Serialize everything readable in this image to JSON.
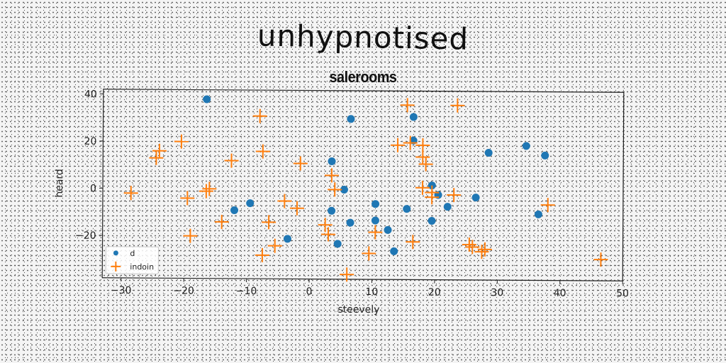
{
  "chart_data": {
    "type": "scatter",
    "title": "unhypnotised",
    "subtitle": "salerooms",
    "xlabel": "steevely",
    "ylabel": "heard",
    "xlim": [
      -33,
      50
    ],
    "ylim": [
      -38,
      42
    ],
    "xticks": [
      -30,
      -20,
      -10,
      0,
      10,
      20,
      30,
      40,
      50
    ],
    "yticks": [
      -20,
      0,
      20,
      40
    ],
    "grid": false,
    "legend_position": "lower-left",
    "series": [
      {
        "name": "d",
        "marker": "circle",
        "color": "#1f77b4",
        "points": [
          [
            -16.5,
            38
          ],
          [
            6.5,
            30
          ],
          [
            16.5,
            31
          ],
          [
            16.5,
            21
          ],
          [
            28.5,
            16
          ],
          [
            34.5,
            19
          ],
          [
            37.5,
            15
          ],
          [
            3.5,
            12
          ],
          [
            5.5,
            0
          ],
          [
            19.5,
            2
          ],
          [
            20.5,
            -2
          ],
          [
            26.5,
            -3
          ],
          [
            -12,
            -9
          ],
          [
            -9.5,
            -6
          ],
          [
            3.5,
            -9
          ],
          [
            10.5,
            -6
          ],
          [
            15.5,
            -8
          ],
          [
            19.5,
            -13
          ],
          [
            22,
            -7
          ],
          [
            36.5,
            -10
          ],
          [
            6.5,
            -14
          ],
          [
            10.5,
            -13
          ],
          [
            12.5,
            -17
          ],
          [
            -3.5,
            -21
          ],
          [
            4.5,
            -23
          ],
          [
            13.5,
            -26
          ]
        ]
      },
      {
        "name": "indoin",
        "marker": "plus",
        "color": "#ff7f0e",
        "points": [
          [
            -8,
            31
          ],
          [
            15.5,
            36
          ],
          [
            23.5,
            36
          ],
          [
            -24.5,
            13
          ],
          [
            -24,
            16
          ],
          [
            -20.5,
            20
          ],
          [
            -7.5,
            16
          ],
          [
            -12.5,
            12
          ],
          [
            -1.5,
            11
          ],
          [
            3.5,
            6
          ],
          [
            14,
            19
          ],
          [
            16,
            20
          ],
          [
            18,
            19
          ],
          [
            18,
            14
          ],
          [
            18.5,
            11
          ],
          [
            -28.5,
            -2
          ],
          [
            -19.5,
            -4
          ],
          [
            -16.5,
            -1
          ],
          [
            -16,
            0
          ],
          [
            4,
            0
          ],
          [
            18,
            1
          ],
          [
            19.5,
            -1
          ],
          [
            19.5,
            -3
          ],
          [
            23,
            -2
          ],
          [
            -4,
            -5
          ],
          [
            -2,
            -8
          ],
          [
            38,
            -6
          ],
          [
            -14,
            -14
          ],
          [
            -6.5,
            -14
          ],
          [
            -19,
            -20
          ],
          [
            2.5,
            -15
          ],
          [
            3,
            -19
          ],
          [
            10.5,
            -18
          ],
          [
            16.5,
            -22
          ],
          [
            -5.5,
            -24
          ],
          [
            -7.5,
            -28
          ],
          [
            9.5,
            -27
          ],
          [
            25.5,
            -23
          ],
          [
            26,
            -24
          ],
          [
            27.5,
            -26
          ],
          [
            28,
            -25
          ],
          [
            46.5,
            -29
          ],
          [
            6,
            -36
          ]
        ]
      }
    ]
  }
}
